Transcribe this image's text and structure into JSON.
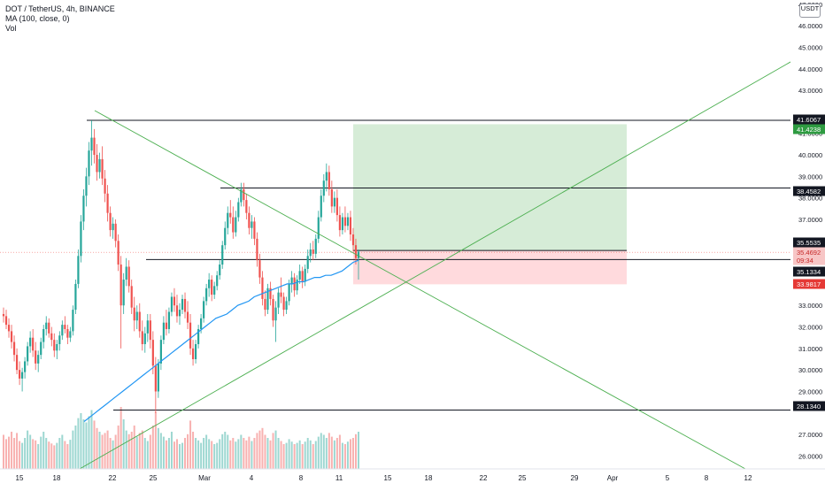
{
  "legend": {
    "symbol_line": "DOT / TetherUS, 4h, BINANCE",
    "indicator_ma": "MA (100, close, 0)",
    "indicator_vol": "Vol"
  },
  "currency_badge": "USDT",
  "colors": {
    "up": "#26a69a",
    "down": "#ef5350",
    "ma": "#2196f3",
    "trendline": "#4caf50",
    "level": "#131722",
    "profit_zone": "#c8e6c9",
    "loss_zone": "#ffcdd2"
  },
  "chart_data": {
    "type": "candlestick",
    "title": "DOT / TetherUS, 4h, BINANCE",
    "y_axis": {
      "range": [
        25.4,
        47.2
      ],
      "ticks": [
        {
          "value": 26,
          "label": "26.0000"
        },
        {
          "value": 27,
          "label": "27.0000"
        },
        {
          "value": 29,
          "label": "29.0000"
        },
        {
          "value": 30,
          "label": "30.0000"
        },
        {
          "value": 31,
          "label": "31.0000"
        },
        {
          "value": 32,
          "label": "32.0000"
        },
        {
          "value": 33,
          "label": "33.0000"
        },
        {
          "value": 37,
          "label": "37.0000"
        },
        {
          "value": 38,
          "label": "38.0000"
        },
        {
          "value": 39,
          "label": "39.0000"
        },
        {
          "value": 40,
          "label": "40.0000"
        },
        {
          "value": 41,
          "label": "41.0000"
        },
        {
          "value": 43,
          "label": "43.0000"
        },
        {
          "value": 44,
          "label": "44.0000"
        },
        {
          "value": 45,
          "label": "45.0000"
        },
        {
          "value": 46,
          "label": "46.0000"
        },
        {
          "value": 47,
          "label": "47.0000"
        }
      ]
    },
    "x_axis": {
      "labels": [
        "15",
        "18",
        "22",
        "25",
        "Mar",
        "4",
        "8",
        "11",
        "15",
        "18",
        "22",
        "25",
        "29",
        "Apr",
        "5",
        "8",
        "12"
      ]
    },
    "price_badges": [
      {
        "label": "41.6067",
        "style": "black"
      },
      {
        "label": "41.4238",
        "style": "green"
      },
      {
        "label": "38.4582",
        "style": "black"
      },
      {
        "label": "35.5535",
        "style": "black"
      },
      {
        "label": "35.4692",
        "style": "red-light"
      },
      {
        "label": "09:34",
        "style": "red-light"
      },
      {
        "label": "35.1334",
        "style": "black"
      },
      {
        "label": "33.9817",
        "style": "red"
      },
      {
        "label": "28.1340",
        "style": "black"
      }
    ],
    "horizontal_levels": [
      41.6067,
      38.4582,
      35.1334,
      28.134
    ],
    "position": {
      "entry": 35.5535,
      "target": 41.4238,
      "stop": 33.9817
    },
    "last_price": 35.4692,
    "ma_period": 100,
    "candles_ohlc": [
      [
        32.6,
        32.9,
        32.2,
        32.5
      ],
      [
        32.5,
        32.8,
        31.9,
        32.1
      ],
      [
        32.1,
        32.4,
        31.5,
        31.8
      ],
      [
        31.8,
        32.1,
        31.0,
        31.3
      ],
      [
        31.3,
        31.6,
        30.4,
        30.7
      ],
      [
        30.7,
        31.0,
        29.8,
        30.0
      ],
      [
        30.0,
        30.4,
        29.3,
        29.6
      ],
      [
        29.6,
        30.1,
        29.0,
        29.9
      ],
      [
        29.9,
        30.6,
        29.6,
        30.4
      ],
      [
        30.4,
        31.3,
        30.2,
        31.1
      ],
      [
        31.1,
        31.8,
        30.8,
        31.5
      ],
      [
        31.5,
        31.9,
        30.6,
        30.9
      ],
      [
        30.9,
        31.3,
        30.0,
        30.3
      ],
      [
        30.3,
        30.9,
        29.9,
        30.7
      ],
      [
        30.7,
        31.5,
        30.5,
        31.3
      ],
      [
        31.3,
        32.1,
        31.0,
        31.9
      ],
      [
        31.9,
        32.5,
        31.6,
        32.2
      ],
      [
        32.2,
        32.4,
        31.5,
        31.7
      ],
      [
        31.7,
        32.0,
        31.1,
        31.4
      ],
      [
        31.4,
        31.7,
        30.6,
        30.9
      ],
      [
        30.9,
        31.4,
        30.5,
        31.2
      ],
      [
        31.2,
        31.8,
        30.9,
        31.6
      ],
      [
        31.6,
        32.3,
        31.4,
        32.1
      ],
      [
        32.1,
        32.5,
        31.7,
        31.9
      ],
      [
        31.9,
        32.1,
        31.2,
        31.5
      ],
      [
        31.5,
        32.0,
        31.3,
        31.8
      ],
      [
        31.8,
        33.0,
        31.6,
        32.8
      ],
      [
        32.8,
        34.2,
        32.6,
        34.0
      ],
      [
        34.0,
        35.6,
        33.8,
        35.3
      ],
      [
        35.3,
        37.2,
        35.0,
        36.9
      ],
      [
        36.9,
        38.4,
        36.5,
        38.1
      ],
      [
        38.1,
        39.4,
        37.6,
        39.0
      ],
      [
        39.0,
        40.6,
        38.6,
        40.2
      ],
      [
        40.2,
        41.6,
        39.5,
        40.8
      ],
      [
        40.8,
        41.2,
        39.6,
        40.0
      ],
      [
        40.0,
        40.5,
        38.8,
        39.2
      ],
      [
        39.2,
        40.1,
        38.9,
        39.8
      ],
      [
        39.8,
        40.4,
        38.6,
        38.9
      ],
      [
        38.9,
        39.3,
        37.8,
        38.2
      ],
      [
        38.2,
        38.6,
        36.9,
        37.3
      ],
      [
        37.3,
        37.6,
        36.2,
        36.5
      ],
      [
        36.5,
        37.1,
        36.1,
        36.8
      ],
      [
        36.8,
        37.0,
        35.7,
        36.0
      ],
      [
        36.0,
        36.3,
        34.6,
        34.9
      ],
      [
        34.9,
        35.3,
        31.0,
        33.0
      ],
      [
        33.0,
        34.5,
        32.6,
        34.2
      ],
      [
        34.2,
        35.2,
        33.9,
        34.8
      ],
      [
        34.8,
        35.1,
        33.6,
        33.9
      ],
      [
        33.9,
        34.2,
        32.6,
        32.9
      ],
      [
        32.9,
        33.4,
        31.8,
        32.3
      ],
      [
        32.3,
        33.0,
        31.9,
        32.7
      ],
      [
        32.7,
        33.1,
        31.5,
        31.8
      ],
      [
        31.8,
        32.3,
        30.9,
        31.2
      ],
      [
        31.2,
        32.0,
        30.8,
        31.7
      ],
      [
        31.7,
        32.6,
        31.3,
        32.3
      ],
      [
        32.3,
        32.6,
        31.0,
        31.4
      ],
      [
        31.4,
        31.8,
        29.8,
        30.2
      ],
      [
        30.2,
        30.6,
        28.0,
        29.0
      ],
      [
        29.0,
        30.5,
        28.7,
        30.3
      ],
      [
        30.3,
        31.6,
        30.0,
        31.4
      ],
      [
        31.4,
        32.5,
        31.2,
        32.2
      ],
      [
        32.2,
        32.8,
        31.6,
        31.9
      ],
      [
        31.9,
        32.9,
        31.7,
        32.7
      ],
      [
        32.7,
        33.6,
        32.5,
        33.4
      ],
      [
        33.4,
        33.8,
        32.7,
        33.0
      ],
      [
        33.0,
        33.5,
        32.2,
        32.5
      ],
      [
        32.5,
        33.1,
        32.1,
        32.8
      ],
      [
        32.8,
        33.5,
        32.6,
        33.3
      ],
      [
        33.3,
        33.6,
        32.4,
        32.7
      ],
      [
        32.7,
        33.2,
        31.9,
        32.2
      ],
      [
        32.2,
        32.6,
        30.7,
        31.0
      ],
      [
        31.0,
        31.4,
        30.2,
        30.5
      ],
      [
        30.5,
        31.4,
        30.3,
        31.2
      ],
      [
        31.2,
        32.1,
        31.0,
        31.9
      ],
      [
        31.9,
        32.6,
        31.7,
        32.4
      ],
      [
        32.4,
        33.4,
        32.2,
        33.2
      ],
      [
        33.2,
        34.0,
        33.0,
        33.8
      ],
      [
        33.8,
        34.5,
        33.4,
        34.2
      ],
      [
        34.2,
        34.4,
        33.2,
        33.5
      ],
      [
        33.5,
        34.1,
        33.3,
        33.9
      ],
      [
        33.9,
        34.6,
        33.7,
        34.4
      ],
      [
        34.4,
        35.1,
        34.2,
        34.9
      ],
      [
        34.9,
        36.0,
        34.7,
        35.8
      ],
      [
        35.8,
        36.9,
        35.6,
        36.6
      ],
      [
        36.6,
        37.6,
        36.3,
        37.3
      ],
      [
        37.3,
        37.9,
        36.8,
        37.1
      ],
      [
        37.1,
        37.6,
        36.1,
        36.4
      ],
      [
        36.4,
        37.4,
        36.2,
        37.1
      ],
      [
        37.1,
        38.0,
        36.9,
        37.8
      ],
      [
        37.8,
        38.7,
        37.6,
        38.4
      ],
      [
        38.4,
        38.7,
        37.6,
        37.9
      ],
      [
        37.9,
        38.2,
        37.0,
        37.3
      ],
      [
        37.3,
        37.6,
        36.3,
        36.6
      ],
      [
        36.6,
        37.2,
        36.1,
        36.9
      ],
      [
        36.9,
        37.1,
        35.8,
        36.1
      ],
      [
        36.1,
        36.4,
        34.8,
        35.1
      ],
      [
        35.1,
        35.4,
        34.0,
        34.3
      ],
      [
        34.3,
        34.6,
        33.0,
        33.3
      ],
      [
        33.3,
        33.7,
        32.5,
        32.8
      ],
      [
        32.8,
        34.0,
        32.6,
        33.8
      ],
      [
        33.8,
        34.1,
        33.0,
        33.3
      ],
      [
        33.3,
        33.5,
        32.0,
        32.3
      ],
      [
        32.3,
        33.2,
        31.3,
        32.9
      ],
      [
        32.9,
        33.8,
        32.6,
        33.6
      ],
      [
        33.6,
        34.3,
        33.1,
        33.4
      ],
      [
        33.4,
        33.6,
        32.5,
        32.8
      ],
      [
        32.8,
        33.4,
        32.6,
        33.2
      ],
      [
        33.2,
        34.2,
        33.0,
        34.0
      ],
      [
        34.0,
        34.6,
        33.6,
        34.3
      ],
      [
        34.3,
        34.5,
        33.4,
        33.7
      ],
      [
        33.7,
        34.4,
        33.5,
        34.2
      ],
      [
        34.2,
        34.9,
        34.0,
        34.6
      ],
      [
        34.6,
        34.8,
        33.8,
        34.1
      ],
      [
        34.1,
        34.9,
        33.9,
        34.7
      ],
      [
        34.7,
        35.6,
        34.5,
        35.3
      ],
      [
        35.3,
        35.9,
        35.0,
        35.6
      ],
      [
        35.6,
        36.0,
        35.1,
        35.4
      ],
      [
        35.4,
        36.3,
        35.2,
        36.1
      ],
      [
        36.1,
        37.4,
        35.9,
        37.1
      ],
      [
        37.1,
        38.4,
        36.9,
        38.1
      ],
      [
        38.1,
        39.1,
        37.8,
        38.8
      ],
      [
        38.8,
        39.6,
        38.3,
        39.2
      ],
      [
        39.2,
        39.5,
        38.1,
        38.4
      ],
      [
        38.4,
        38.8,
        37.3,
        37.6
      ],
      [
        37.6,
        38.3,
        37.3,
        38.0
      ],
      [
        38.0,
        38.4,
        36.9,
        37.2
      ],
      [
        37.2,
        37.6,
        36.2,
        36.5
      ],
      [
        36.5,
        37.3,
        36.3,
        37.1
      ],
      [
        37.1,
        37.6,
        36.4,
        36.7
      ],
      [
        36.7,
        37.3,
        36.5,
        37.1
      ],
      [
        37.1,
        37.4,
        36.0,
        36.3
      ],
      [
        36.3,
        36.6,
        35.5,
        35.8
      ],
      [
        35.8,
        36.1,
        34.9,
        35.2
      ],
      [
        35.2,
        35.6,
        34.2,
        35.5
      ]
    ],
    "ma_values": [
      27.6,
      27.8,
      28.0,
      28.2,
      28.4,
      28.6,
      28.8,
      29.0,
      29.2,
      29.4,
      29.6,
      29.8,
      30.0,
      30.2,
      30.4,
      30.6,
      30.8,
      31.0,
      31.2,
      31.4,
      31.6,
      31.8,
      32.0,
      32.2,
      32.4,
      32.5,
      32.6,
      32.8,
      33.0,
      33.1,
      33.2,
      33.4,
      33.5,
      33.6,
      33.7,
      33.8,
      33.9,
      34.0,
      34.0,
      34.1,
      34.1,
      34.2,
      34.3,
      34.3,
      34.4,
      34.4,
      34.5,
      34.6,
      34.8,
      35.0,
      35.1
    ],
    "volumes": [
      0.55,
      0.48,
      0.52,
      0.6,
      0.5,
      0.58,
      0.45,
      0.42,
      0.5,
      0.62,
      0.55,
      0.48,
      0.46,
      0.4,
      0.52,
      0.6,
      0.5,
      0.44,
      0.41,
      0.38,
      0.42,
      0.5,
      0.55,
      0.45,
      0.4,
      0.47,
      0.62,
      0.7,
      0.82,
      0.9,
      0.8,
      0.75,
      0.85,
      0.95,
      0.78,
      0.66,
      0.6,
      0.55,
      0.58,
      0.62,
      0.5,
      0.46,
      0.55,
      0.7,
      1.0,
      0.8,
      0.62,
      0.56,
      0.6,
      0.7,
      0.52,
      0.58,
      0.62,
      0.5,
      0.45,
      0.55,
      0.7,
      0.92,
      0.66,
      0.58,
      0.52,
      0.46,
      0.5,
      0.6,
      0.44,
      0.48,
      0.4,
      0.42,
      0.5,
      0.56,
      0.78,
      0.6,
      0.5,
      0.46,
      0.42,
      0.5,
      0.55,
      0.48,
      0.45,
      0.4,
      0.42,
      0.48,
      0.56,
      0.6,
      0.55,
      0.46,
      0.5,
      0.44,
      0.48,
      0.55,
      0.5,
      0.46,
      0.52,
      0.45,
      0.5,
      0.58,
      0.62,
      0.66,
      0.55,
      0.5,
      0.46,
      0.58,
      0.62,
      0.5,
      0.45,
      0.4,
      0.42,
      0.48,
      0.44,
      0.4,
      0.42,
      0.46,
      0.4,
      0.44,
      0.5,
      0.46,
      0.4,
      0.45,
      0.52,
      0.58,
      0.55,
      0.5,
      0.58,
      0.52,
      0.46,
      0.5,
      0.55,
      0.42,
      0.4,
      0.44,
      0.48,
      0.5,
      0.56,
      0.6
    ]
  }
}
